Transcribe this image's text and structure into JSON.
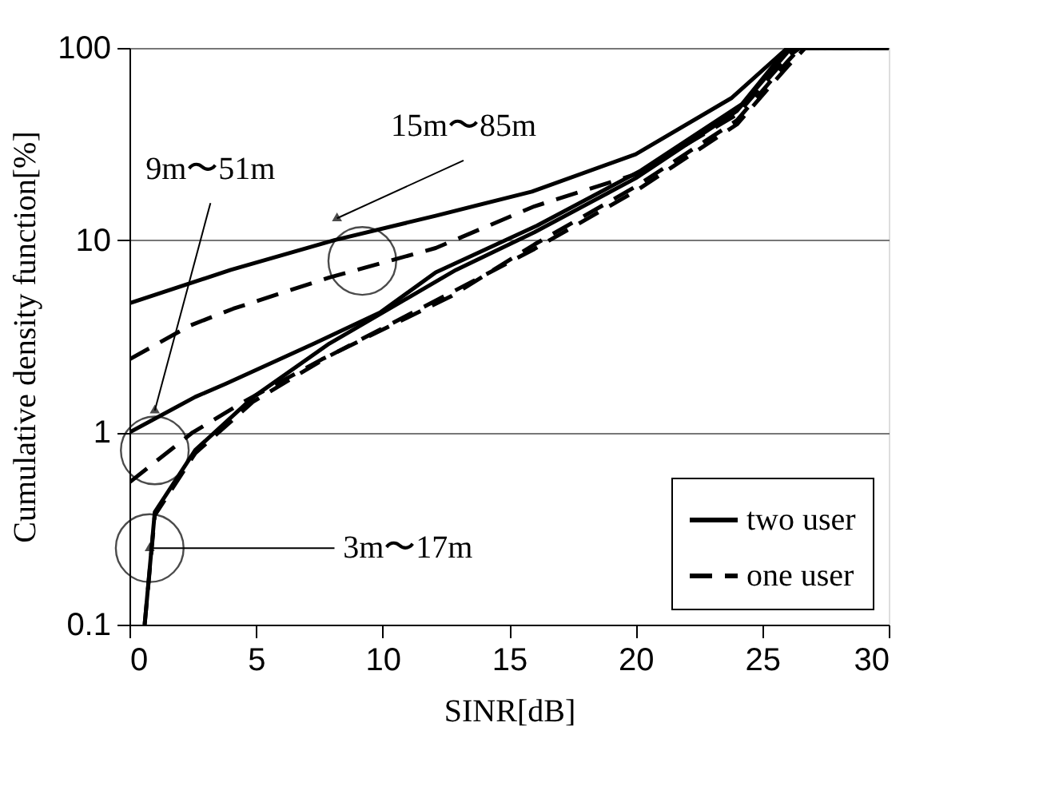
{
  "chart_data": {
    "type": "line",
    "xlabel": "SINR[dB]",
    "ylabel": "Cumulative density function[%]",
    "xlim": [
      0,
      30
    ],
    "xticks": [
      0,
      5,
      10,
      15,
      20,
      25,
      30
    ],
    "ylim": [
      0.1,
      100
    ],
    "yticks": [
      0.1,
      1,
      10,
      100
    ],
    "log": true,
    "grid": "y",
    "legend": "bottom right",
    "marker": "none",
    "series": [
      {
        "name": "two user",
        "color": "#000000",
        "line_style": "solid",
        "x": [
          0,
          4,
          8.1,
          12.1,
          15.9,
          20,
          23.8,
          26,
          30
        ],
        "values": [
          4.7,
          7.0,
          10,
          13.4,
          17.9,
          28,
          55,
          100,
          100
        ]
      },
      {
        "name": "one user",
        "color": "#000000",
        "line_style": "dashed",
        "x": [
          0,
          2.4,
          4.1,
          7.9,
          12.1,
          16,
          20,
          24,
          26,
          26.5,
          30
        ],
        "values": [
          2.4,
          3.6,
          4.4,
          6.4,
          9.1,
          15,
          22,
          45,
          90,
          100,
          100
        ]
      },
      {
        "color": "#000000",
        "line_style": "solid",
        "x": [
          0,
          2.6,
          3.8,
          7.3,
          9.9,
          12.1,
          16.1,
          20.2,
          24.2,
          26,
          30
        ],
        "values": [
          1.0,
          1.53,
          1.79,
          2.9,
          4.2,
          6.8,
          11.9,
          23,
          51,
          100,
          100
        ]
      },
      {
        "color": "#000000",
        "line_style": "dashed",
        "x": [
          0,
          2.5,
          4.5,
          7.6,
          12.7,
          16,
          20,
          24,
          26,
          26.5,
          30
        ],
        "values": [
          0.55,
          1.0,
          1.44,
          2.4,
          5.1,
          9.5,
          19,
          42,
          85,
          100,
          100
        ]
      },
      {
        "color": "#000000",
        "line_style": "solid",
        "x": [
          0.6,
          1.0,
          2.6,
          4.9,
          7.9,
          12.9,
          16,
          20,
          24,
          26,
          26.3,
          30
        ],
        "values": [
          0.1,
          0.385,
          0.81,
          1.53,
          2.9,
          7.0,
          11,
          21,
          47,
          95,
          100,
          100
        ]
      },
      {
        "color": "#000000",
        "line_style": "dashed",
        "x": [
          0.6,
          1.0,
          2.6,
          4.9,
          7.9,
          12.9,
          16,
          20,
          24,
          26,
          26.7,
          30
        ],
        "values": [
          0.1,
          0.37,
          0.78,
          1.45,
          2.5,
          5.5,
          9,
          18,
          40,
          80,
          100,
          100
        ]
      }
    ],
    "annotations": [
      {
        "text": "15m〜85m",
        "x": 8.2,
        "y": 13
      },
      {
        "text": "9m〜51m",
        "x": 1.0,
        "y": 1.3
      },
      {
        "text": "3m〜17m",
        "x": 0.8,
        "y": 0.25
      }
    ]
  }
}
